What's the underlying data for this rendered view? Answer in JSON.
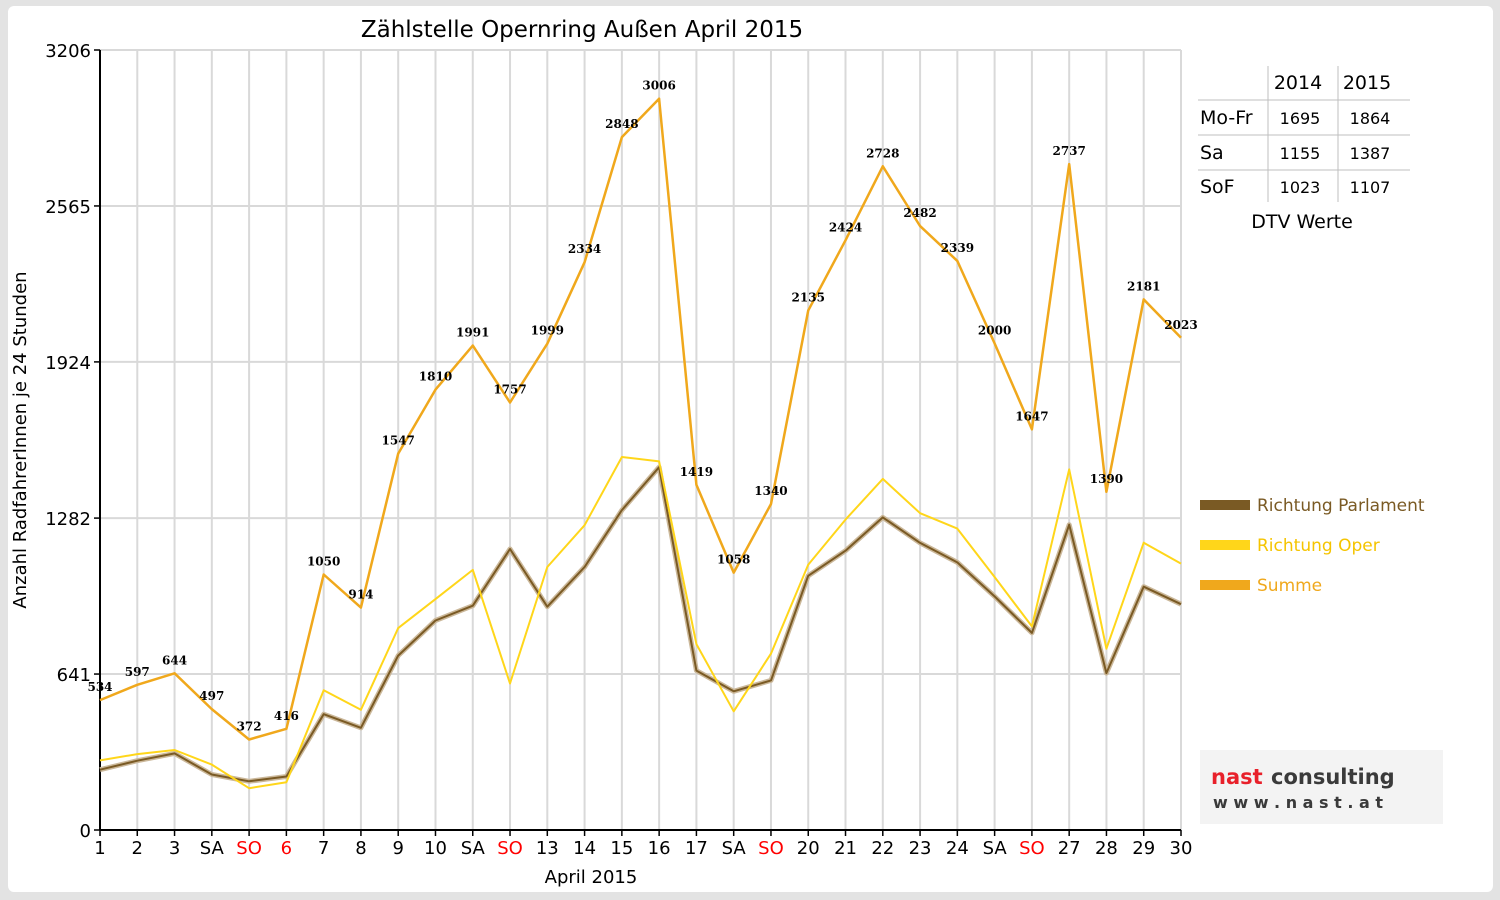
{
  "chart_data": {
    "type": "line",
    "title": "Zählstelle Opernring Außen April 2015",
    "xlabel": "April 2015",
    "ylabel": "Anzahl RadfahrerInnen je 24 Stunden",
    "ylim": [
      0,
      3206
    ],
    "yticks": [
      0,
      641,
      1282,
      1924,
      2565,
      3206
    ],
    "grid": true,
    "legend_position": "right",
    "categories": [
      "1",
      "2",
      "3",
      "SA",
      "SO",
      "6",
      "7",
      "8",
      "9",
      "10",
      "SA",
      "SO",
      "13",
      "14",
      "15",
      "16",
      "17",
      "SA",
      "SO",
      "20",
      "21",
      "22",
      "23",
      "24",
      "SA",
      "SO",
      "27",
      "28",
      "29",
      "30"
    ],
    "red_categories": [
      4,
      5,
      11,
      18,
      25
    ],
    "series": [
      {
        "name": "Richtung Parlament",
        "color": "#7a5a24",
        "values": [
          248,
          285,
          315,
          228,
          200,
          220,
          476,
          420,
          717,
          861,
          922,
          1155,
          918,
          1081,
          1315,
          1491,
          655,
          570,
          615,
          1045,
          1148,
          1285,
          1180,
          1100,
          960,
          810,
          1255,
          645,
          1000,
          928
        ]
      },
      {
        "name": "Richtung Oper",
        "color": "#ffd61a",
        "values": [
          286,
          312,
          329,
          269,
          172,
          196,
          574,
          494,
          830,
          949,
          1069,
          602,
          1081,
          1253,
          1533,
          1515,
          764,
          488,
          725,
          1090,
          1276,
          1443,
          1302,
          1239,
          1040,
          837,
          1482,
          745,
          1181,
          1095
        ]
      },
      {
        "name": "Summe",
        "color": "#f0a81c",
        "values": [
          534,
          597,
          644,
          497,
          372,
          416,
          1050,
          914,
          1547,
          1810,
          1991,
          1757,
          1999,
          2334,
          2848,
          3006,
          1419,
          1058,
          1340,
          2135,
          2424,
          2728,
          2482,
          2339,
          2000,
          1647,
          2737,
          1390,
          2181,
          2023
        ]
      }
    ],
    "data_labels": [
      "534",
      "597",
      "644",
      "497",
      "372",
      "416",
      "1050",
      "914",
      "1547",
      "1810",
      "1991",
      "1757",
      "1999",
      "2334",
      "2848",
      "3006",
      "1419",
      "1058",
      "1340",
      "2135",
      "2424",
      "2728",
      "2482",
      "2339",
      "2000",
      "1647",
      "2737",
      "1390",
      "2181",
      "2023"
    ]
  },
  "dtv_table": {
    "headers": [
      "",
      "2014",
      "2015"
    ],
    "rows": [
      {
        "label": "Mo-Fr",
        "v2014": "1695",
        "v2015": "1864"
      },
      {
        "label": "Sa",
        "v2014": "1155",
        "v2015": "1387"
      },
      {
        "label": "SoF",
        "v2014": "1023",
        "v2015": "1107"
      }
    ],
    "caption": "DTV Werte"
  },
  "logo": {
    "line1": "nast consulting",
    "line2": "w w w . n a s t . a t",
    "color_red": "#e8202a",
    "color_dark": "#3a3a3a"
  },
  "colors": {
    "weekend_red": "#ff0000",
    "grid": "#d9d9d9",
    "frame": "#e3e3e3"
  }
}
